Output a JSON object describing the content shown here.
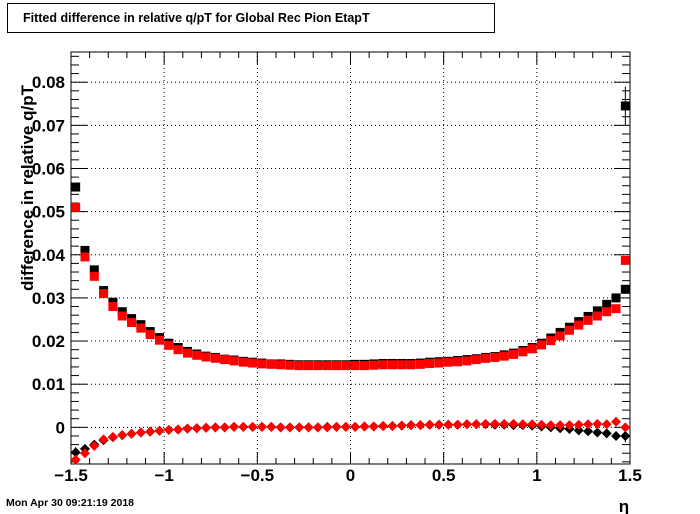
{
  "title": "Fitted difference in relative q/pT for Global Rec Pion EtapT",
  "footer_text": "Mon Apr 30 09:21:19 2018",
  "chart_data": {
    "type": "scatter",
    "title": "Fitted difference in relative q/pT for Global Rec Pion EtapT",
    "xlabel": "η",
    "ylabel": "difference in relative q/pT",
    "xlim": [
      -1.5,
      1.5
    ],
    "ylim": [
      -0.0085,
      0.087
    ],
    "grid": true,
    "x_ticks": [
      -1.5,
      -1,
      -0.5,
      0,
      0.5,
      1,
      1.5
    ],
    "x_tick_labels": [
      "−1.5",
      "−1",
      "−0.5",
      "0",
      "0.5",
      "1",
      "1.5"
    ],
    "y_ticks": [
      0,
      0.01,
      0.02,
      0.03,
      0.04,
      0.05,
      0.06,
      0.07,
      0.08
    ],
    "y_tick_labels": [
      "0",
      "0.01",
      "0.02",
      "0.03",
      "0.04",
      "0.05",
      "0.06",
      "0.07",
      "0.08"
    ],
    "x": [
      -1.475,
      -1.425,
      -1.375,
      -1.325,
      -1.275,
      -1.225,
      -1.175,
      -1.125,
      -1.075,
      -1.025,
      -0.975,
      -0.925,
      -0.875,
      -0.825,
      -0.775,
      -0.725,
      -0.675,
      -0.625,
      -0.575,
      -0.525,
      -0.475,
      -0.425,
      -0.375,
      -0.325,
      -0.275,
      -0.225,
      -0.175,
      -0.125,
      -0.075,
      -0.025,
      0.025,
      0.075,
      0.125,
      0.175,
      0.225,
      0.275,
      0.325,
      0.375,
      0.425,
      0.475,
      0.525,
      0.575,
      0.625,
      0.675,
      0.725,
      0.775,
      0.825,
      0.875,
      0.925,
      0.975,
      1.025,
      1.075,
      1.125,
      1.175,
      1.225,
      1.275,
      1.325,
      1.375,
      1.425,
      1.475
    ],
    "series": [
      {
        "marker": "square",
        "color": "#000000",
        "values": [
          0.0557,
          0.041,
          0.0365,
          0.0317,
          0.029,
          0.0268,
          0.0252,
          0.0238,
          0.0222,
          0.0208,
          0.0195,
          0.0185,
          0.0176,
          0.017,
          0.0165,
          0.0162,
          0.0158,
          0.0156,
          0.0153,
          0.0151,
          0.0149,
          0.0147,
          0.0147,
          0.0146,
          0.0145,
          0.0145,
          0.0145,
          0.0145,
          0.0145,
          0.0145,
          0.0146,
          0.0146,
          0.0147,
          0.0148,
          0.0148,
          0.0148,
          0.0148,
          0.0149,
          0.0151,
          0.0152,
          0.0153,
          0.0155,
          0.0157,
          0.0159,
          0.0162,
          0.0164,
          0.0168,
          0.0172,
          0.0178,
          0.0185,
          0.0195,
          0.0207,
          0.022,
          0.0232,
          0.0245,
          0.0257,
          0.027,
          0.0285,
          0.03,
          0.032
        ],
        "errors": [
          0,
          0,
          0,
          0,
          0,
          0,
          0,
          0,
          0,
          0,
          0,
          0,
          0,
          0,
          0,
          0,
          0,
          0,
          0,
          0,
          0,
          0,
          0,
          0,
          0,
          0,
          0,
          0,
          0,
          0,
          0,
          0,
          0,
          0,
          0,
          0,
          0,
          0,
          0,
          0,
          0,
          0,
          0,
          0,
          0,
          0,
          0,
          0,
          0,
          0,
          0,
          0,
          0,
          0,
          0,
          0,
          0,
          0,
          0,
          0
        ]
      },
      {
        "marker": "square",
        "color": "#ff0000",
        "values": [
          0.051,
          0.0395,
          0.035,
          0.031,
          0.028,
          0.0258,
          0.0243,
          0.023,
          0.0215,
          0.0202,
          0.019,
          0.018,
          0.0172,
          0.0167,
          0.0163,
          0.016,
          0.0157,
          0.0154,
          0.0151,
          0.0149,
          0.0147,
          0.0146,
          0.0145,
          0.0144,
          0.0143,
          0.0143,
          0.0143,
          0.0143,
          0.0143,
          0.0143,
          0.0143,
          0.0143,
          0.0144,
          0.0145,
          0.0145,
          0.0145,
          0.0145,
          0.0146,
          0.0148,
          0.0149,
          0.0151,
          0.0152,
          0.0154,
          0.0157,
          0.016,
          0.0162,
          0.0165,
          0.0169,
          0.0175,
          0.0182,
          0.0191,
          0.0201,
          0.0212,
          0.0225,
          0.0237,
          0.0248,
          0.0258,
          0.0268,
          0.0275,
          0.0387
        ],
        "errors": [
          0,
          0,
          0,
          0,
          0,
          0,
          0,
          0,
          0,
          0,
          0,
          0,
          0,
          0,
          0,
          0,
          0,
          0,
          0,
          0,
          0,
          0,
          0,
          0,
          0,
          0,
          0,
          0,
          0,
          0,
          0,
          0,
          0,
          0,
          0,
          0,
          0,
          0,
          0,
          0,
          0,
          0,
          0,
          0,
          0,
          0,
          0,
          0,
          0,
          0,
          0,
          0,
          0,
          0,
          0,
          0,
          0,
          0,
          0,
          0
        ]
      },
      {
        "marker": "diamond",
        "color": "#000000",
        "values": [
          -0.0058,
          -0.005,
          -0.004,
          -0.003,
          -0.0023,
          -0.0018,
          -0.0015,
          -0.0012,
          -0.001,
          -0.0008,
          -0.0006,
          -0.0005,
          -0.0003,
          -0.0002,
          -0.0001,
          0.0,
          0.0,
          0.0001,
          0.0001,
          0.0001,
          0.0001,
          0.0001,
          0.0,
          0.0,
          0.0,
          0.0,
          0.0,
          0.0001,
          0.0001,
          0.0001,
          0.0001,
          0.0002,
          0.0002,
          0.0003,
          0.0003,
          0.0004,
          0.0005,
          0.0005,
          0.0006,
          0.0006,
          0.0006,
          0.0006,
          0.0007,
          0.0007,
          0.0007,
          0.0006,
          0.0006,
          0.0005,
          0.0005,
          0.0004,
          0.0002,
          0.0,
          -0.0002,
          -0.0004,
          -0.0007,
          -0.0009,
          -0.0012,
          -0.0014,
          -0.002,
          -0.002
        ],
        "errors": [
          0.0012,
          0,
          0,
          0,
          0,
          0,
          0,
          0,
          0,
          0,
          0,
          0,
          0,
          0,
          0,
          0,
          0,
          0,
          0,
          0,
          0,
          0,
          0,
          0,
          0,
          0,
          0,
          0,
          0,
          0,
          0,
          0,
          0,
          0,
          0,
          0,
          0,
          0,
          0,
          0,
          0,
          0,
          0,
          0,
          0,
          0,
          0,
          0,
          0,
          0,
          0,
          0,
          0,
          0,
          0,
          0,
          0,
          0,
          0,
          0.0015
        ]
      },
      {
        "marker": "diamond",
        "color": "#ff0000",
        "values": [
          -0.0075,
          -0.006,
          -0.0043,
          -0.0028,
          -0.0022,
          -0.0018,
          -0.0015,
          -0.0012,
          -0.001,
          -0.0008,
          -0.0006,
          -0.0005,
          -0.0003,
          -0.0002,
          -0.0001,
          0.0,
          0.0,
          0.0001,
          0.0001,
          0.0001,
          0.0001,
          0.0001,
          0.0,
          0.0,
          0.0,
          0.0,
          0.0,
          0.0,
          0.0001,
          0.0001,
          0.0001,
          0.0002,
          0.0002,
          0.0003,
          0.0003,
          0.0004,
          0.0005,
          0.0005,
          0.0006,
          0.0006,
          0.0006,
          0.0006,
          0.0007,
          0.0007,
          0.0008,
          0.0008,
          0.0008,
          0.0008,
          0.0007,
          0.0007,
          0.0006,
          0.0005,
          0.0005,
          0.0005,
          0.0006,
          0.0007,
          0.0008,
          0.0007,
          0.0013,
          0.0
        ],
        "errors": [
          0,
          0,
          0,
          0,
          0,
          0,
          0,
          0,
          0,
          0,
          0,
          0,
          0,
          0,
          0,
          0,
          0,
          0,
          0,
          0,
          0,
          0,
          0,
          0,
          0,
          0,
          0,
          0,
          0,
          0,
          0,
          0,
          0,
          0,
          0,
          0,
          0,
          0,
          0,
          0,
          0,
          0,
          0,
          0,
          0,
          0,
          0,
          0,
          0,
          0,
          0,
          0,
          0,
          0,
          0,
          0,
          0,
          0,
          0,
          0
        ]
      }
    ],
    "extra_points": [
      {
        "x": 1.475,
        "y": 0.0745,
        "marker": "square",
        "color": "#000000",
        "error": 0.0045
      }
    ]
  }
}
